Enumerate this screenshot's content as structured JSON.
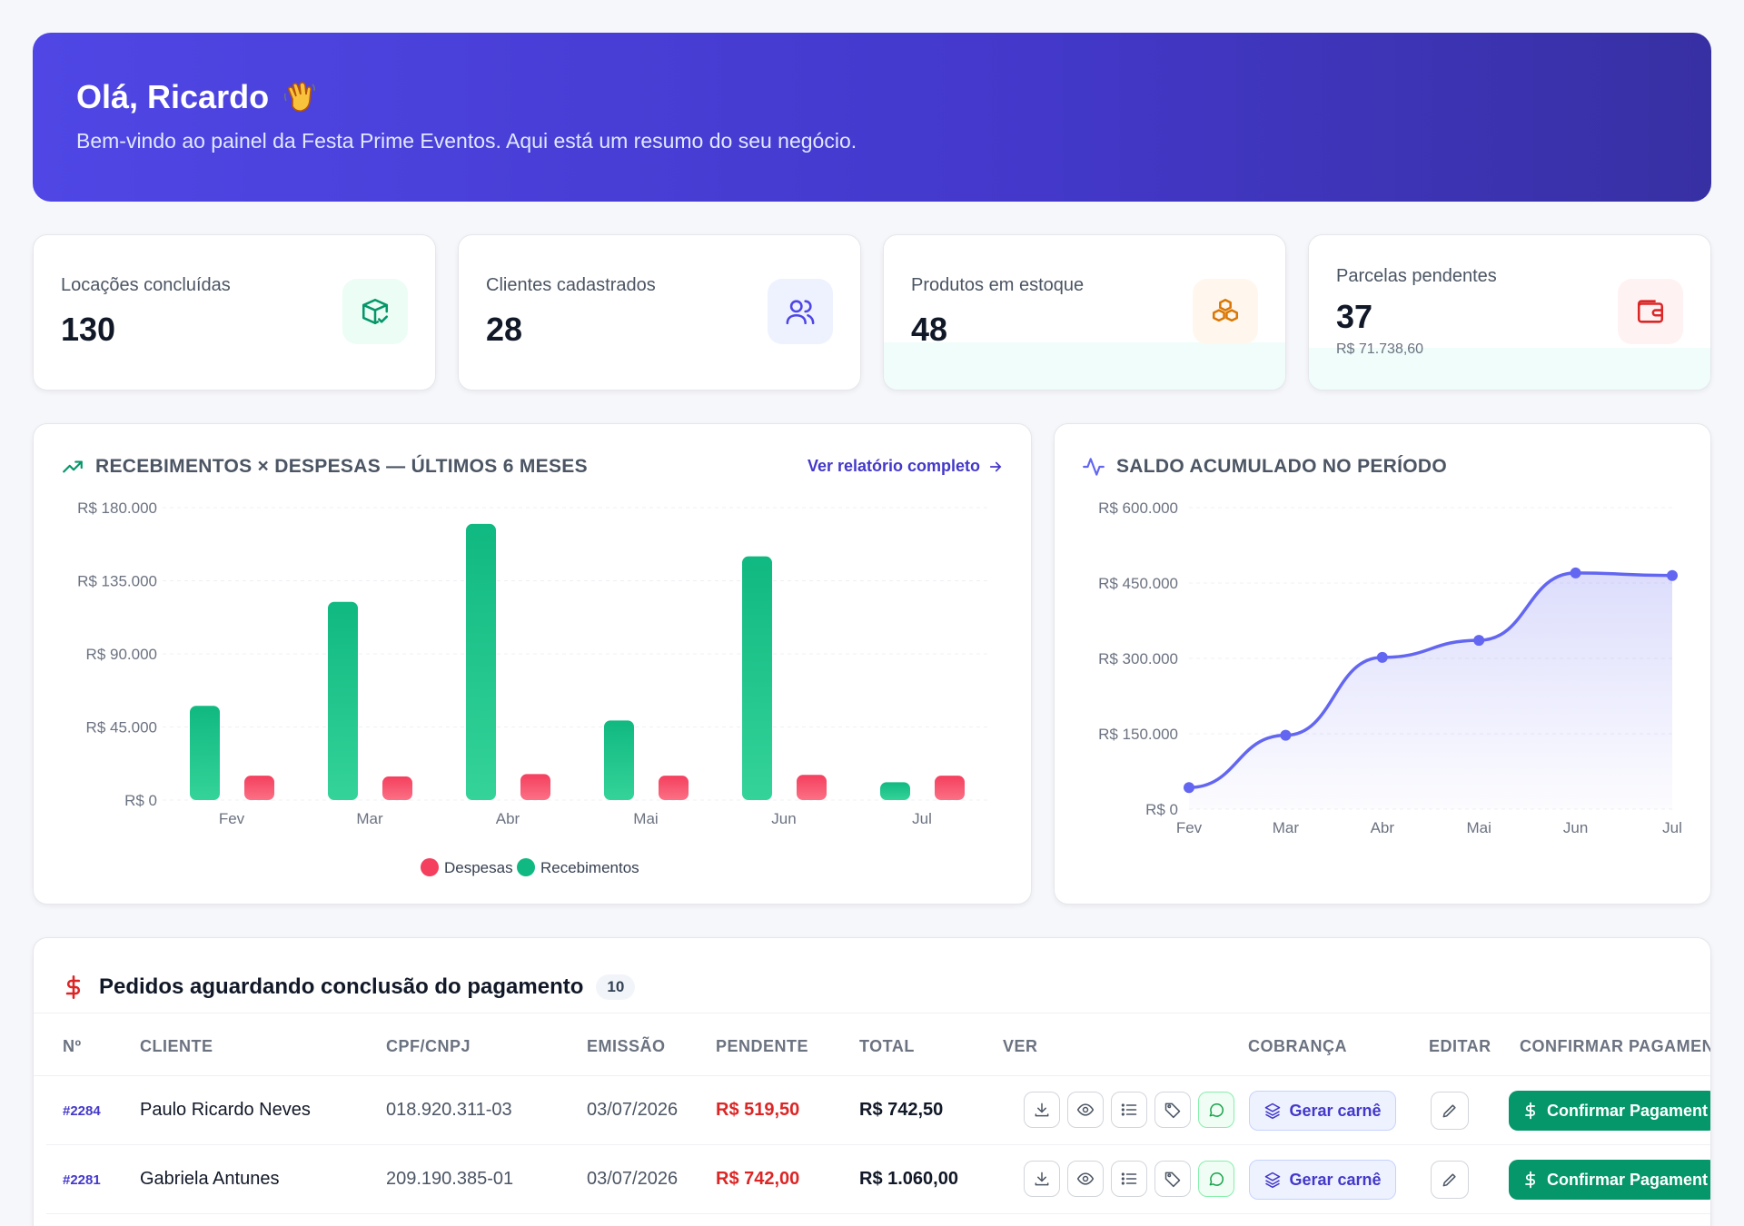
{
  "hero": {
    "greeting": "Olá, Ricardo",
    "subtitle": "Bem-vindo ao painel da Festa Prime Eventos. Aqui está um resumo do seu negócio."
  },
  "stats": [
    {
      "label": "Locações concluídas",
      "value": "130",
      "icon": "package-check-icon",
      "color": "#059669"
    },
    {
      "label": "Clientes cadastrados",
      "value": "28",
      "icon": "users-icon",
      "color": "#4f46e5"
    },
    {
      "label": "Produtos em estoque",
      "value": "48",
      "icon": "boxes-icon",
      "color": "#d97706"
    },
    {
      "label": "Parcelas pendentes",
      "value": "37",
      "sub": "R$ 71.738,60",
      "icon": "wallet-icon",
      "color": "#dc2626"
    }
  ],
  "bar_panel": {
    "title": "RECEBIMENTOS × DESPESAS — ÚLTIMOS 6 MESES",
    "link": "Ver relatório completo"
  },
  "line_panel": {
    "title": "SALDO ACUMULADO NO PERÍODO"
  },
  "chart_data": [
    {
      "type": "bar",
      "categories": [
        "Fev",
        "Mar",
        "Abr",
        "Mai",
        "Jun",
        "Jul"
      ],
      "series": [
        {
          "name": "Recebimentos",
          "values": [
            58000,
            122000,
            170000,
            49000,
            150000,
            11000
          ],
          "color": "#10b981"
        },
        {
          "name": "Despesas",
          "values": [
            15000,
            14500,
            16000,
            15000,
            15500,
            15000
          ],
          "color": "#f43f5e"
        }
      ],
      "yticks": [
        "R$ 180.000",
        "R$ 135.000",
        "R$ 90.000",
        "R$ 45.000",
        "R$ 0"
      ],
      "ylim": [
        0,
        180000
      ],
      "legend": [
        "Despesas",
        "Recebimentos"
      ],
      "legend_position": "bottom"
    },
    {
      "type": "area",
      "categories": [
        "Fev",
        "Mar",
        "Abr",
        "Mai",
        "Jun",
        "Jul"
      ],
      "series": [
        {
          "values": [
            43000,
            147000,
            302000,
            336000,
            470000,
            465000
          ],
          "color": "#6366f1"
        }
      ],
      "yticks": [
        "R$ 600.000",
        "R$ 450.000",
        "R$ 300.000",
        "R$ 150.000",
        "R$ 0"
      ],
      "ylim": [
        0,
        600000
      ]
    }
  ],
  "orders": {
    "title": "Pedidos aguardando conclusão do pagamento",
    "count": "10",
    "columns": [
      "Nº",
      "CLIENTE",
      "CPF/CNPJ",
      "EMISSÃO",
      "PENDENTE",
      "TOTAL",
      "VER",
      "COBRANÇA",
      "EDITAR",
      "CONFIRMAR PAGAMEN"
    ],
    "rows": [
      {
        "no": "#2284",
        "client": "Paulo Ricardo Neves",
        "doc": "018.920.311-03",
        "date": "03/07/2026",
        "pending": "R$ 519,50",
        "total": "R$ 742,50"
      },
      {
        "no": "#2281",
        "client": "Gabriela Antunes",
        "doc": "209.190.385-01",
        "date": "03/07/2026",
        "pending": "R$ 742,00",
        "total": "R$ 1.060,00"
      },
      {
        "no": "",
        "client": "",
        "doc": "",
        "date": "",
        "pending": "",
        "total": ""
      }
    ],
    "carne_label": "Gerar carnê",
    "confirm_label": "Confirmar Pagament"
  }
}
